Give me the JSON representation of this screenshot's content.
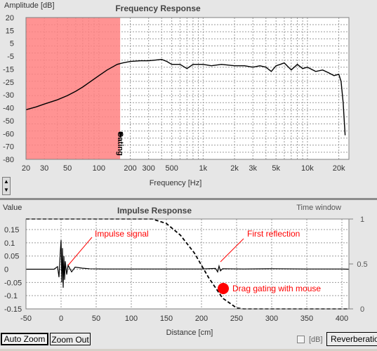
{
  "frequency_panel": {
    "title": "Frequency Response",
    "y_label": "Amplitude [dB]",
    "x_label": "Frequency [Hz]",
    "gating_label": "Gating",
    "gate_color": "#ff8080"
  },
  "impulse_panel": {
    "title": "Impulse Response",
    "y_label": "Value",
    "x_label": "Distance [cm]",
    "window_label": "Time window",
    "annotations": {
      "impulse": "Impulse signal",
      "reflection": "First reflection",
      "drag": "Drag gating with mouse"
    },
    "annotation_color": "#ff0000"
  },
  "controls": {
    "auto_zoom": "Auto Zoom",
    "zoom_out": "Zoom Out",
    "db_label": "[dB]",
    "reverberation_tab": "Reverberation",
    "scroll_up": "▲",
    "scroll_down": "▼"
  },
  "chart_data": [
    {
      "type": "line",
      "title": "Frequency Response",
      "ylabel": "Amplitude [dB]",
      "xlabel": "Frequency [Hz]",
      "x_scale": "log",
      "xlim": [
        20,
        25000
      ],
      "ylim": [
        -80,
        20
      ],
      "x_ticks": [
        "20",
        "30",
        "50",
        "100",
        "200",
        "300",
        "500",
        "1k",
        "2k",
        "3k",
        "5k",
        "10k",
        "20k"
      ],
      "y_ticks": [
        "20",
        "15",
        "5",
        "-5",
        "-15",
        "-25",
        "-30",
        "-40",
        "-50",
        "-60",
        "-70",
        "-80"
      ],
      "grid": true,
      "gating_region_hz": [
        20,
        160
      ],
      "series": [
        {
          "x": [
            20,
            25,
            30,
            40,
            50,
            60,
            70,
            80,
            100,
            120,
            150,
            170,
            200,
            250,
            300,
            350,
            400,
            450,
            500,
            600,
            700,
            800,
            900,
            1000,
            1200,
            1500,
            2000,
            2500,
            3000,
            3500,
            4000,
            4500,
            5000,
            5500,
            6000,
            7000,
            8000,
            9000,
            10000,
            12000,
            14000,
            16000,
            18000,
            20000,
            21000,
            22000,
            23000
          ],
          "y": [
            -45,
            -43,
            -41,
            -38,
            -35,
            -32,
            -29,
            -26,
            -21,
            -17,
            -13,
            -12,
            -11,
            -10.5,
            -10.5,
            -10,
            -9.5,
            -11,
            -13,
            -13,
            -16,
            -13,
            -13,
            -13,
            -14,
            -13,
            -14,
            -14,
            -15,
            -14,
            -15,
            -18,
            -14,
            -13,
            -12,
            -17,
            -13,
            -16,
            -15,
            -18,
            -17,
            -19,
            -21,
            -20,
            -25,
            -40,
            -63
          ]
        }
      ]
    },
    {
      "type": "line",
      "title": "Impulse Response",
      "ylabel": "Value",
      "xlabel": "Distance [cm]",
      "xlim": [
        -50,
        410
      ],
      "ylim": [
        -0.15,
        0.19
      ],
      "x_ticks": [
        "-50",
        "0",
        "50",
        "100",
        "150",
        "200",
        "250",
        "300",
        "350",
        "400"
      ],
      "y_ticks": [
        "0.15",
        "0.1",
        "0.05",
        "0",
        "-0.05",
        "-0.1",
        "-0.15"
      ],
      "right_axis_ticks": [
        "1",
        "0.5",
        "0"
      ],
      "series": [
        {
          "name": "Impulse",
          "x": [
            -50,
            -10,
            -5,
            -3,
            -1,
            0,
            1,
            2,
            3,
            4,
            5,
            6,
            8,
            10,
            15,
            20,
            30,
            40,
            60,
            100,
            150,
            200,
            220,
            223,
            225,
            227,
            230,
            260,
            300,
            350,
            400,
            410
          ],
          "y": [
            0,
            0,
            0.01,
            -0.03,
            0.07,
            0.11,
            -0.05,
            0.08,
            -0.07,
            0.05,
            -0.04,
            0.03,
            -0.02,
            0.015,
            -0.01,
            0.008,
            0.004,
            0.002,
            0.001,
            0.001,
            0.001,
            0.001,
            0.003,
            -0.01,
            0.012,
            -0.006,
            0.002,
            0.001,
            0.002,
            0.001,
            0.001,
            0
          ]
        },
        {
          "name": "Time window",
          "x": [
            -50,
            0,
            130,
            150,
            170,
            190,
            210,
            230,
            250,
            260,
            410
          ],
          "y": [
            1,
            1,
            1,
            0.95,
            0.82,
            0.62,
            0.35,
            0.12,
            0.01,
            0,
            0
          ]
        }
      ]
    }
  ]
}
